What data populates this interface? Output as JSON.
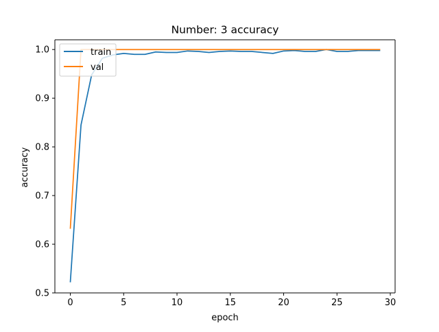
{
  "chart_data": {
    "type": "line",
    "title": "Number: 3 accuracy",
    "xlabel": "epoch",
    "ylabel": "accuracy",
    "xlim": [
      -1.45,
      30.45
    ],
    "ylim": [
      0.5,
      1.02
    ],
    "xticks": [
      0,
      5,
      10,
      15,
      20,
      25,
      30
    ],
    "yticks": [
      0.5,
      0.6,
      0.7,
      0.8,
      0.9,
      1.0
    ],
    "xtick_labels": [
      "0",
      "5",
      "10",
      "15",
      "20",
      "25",
      "30"
    ],
    "ytick_labels": [
      "0.5",
      "0.6",
      "0.7",
      "0.8",
      "0.9",
      "1.0"
    ],
    "grid": false,
    "legend_position": "upper-left",
    "x": [
      0,
      1,
      2,
      3,
      4,
      5,
      6,
      7,
      8,
      9,
      10,
      11,
      12,
      13,
      14,
      15,
      16,
      17,
      18,
      19,
      20,
      21,
      22,
      23,
      24,
      25,
      26,
      27,
      28,
      29
    ],
    "series": [
      {
        "name": "train",
        "color": "#1f77b4",
        "values": [
          0.523,
          0.845,
          0.948,
          0.982,
          0.989,
          0.992,
          0.99,
          0.99,
          0.995,
          0.994,
          0.994,
          0.997,
          0.996,
          0.994,
          0.996,
          0.997,
          0.996,
          0.996,
          0.994,
          0.992,
          0.997,
          0.998,
          0.996,
          0.996,
          1.0,
          0.996,
          0.996,
          0.998,
          0.998,
          0.998
        ]
      },
      {
        "name": "val",
        "color": "#ff7f0e",
        "values": [
          0.633,
          1.0,
          1.0,
          1.0,
          1.0,
          1.0,
          1.0,
          1.0,
          1.0,
          1.0,
          1.0,
          1.0,
          1.0,
          1.0,
          1.0,
          1.0,
          1.0,
          1.0,
          1.0,
          1.0,
          1.0,
          1.0,
          1.0,
          1.0,
          1.0,
          1.0,
          1.0,
          1.0,
          1.0,
          1.0
        ]
      }
    ]
  }
}
